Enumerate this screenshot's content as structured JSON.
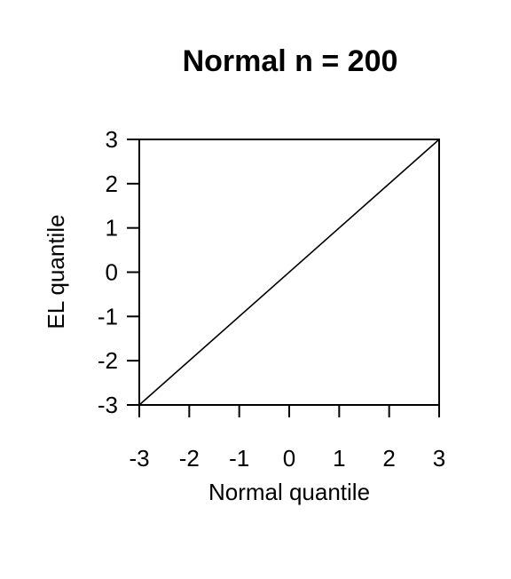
{
  "chart_data": {
    "type": "line",
    "title": "Normal n = 200",
    "xlabel": "Normal quantile",
    "ylabel": "EL quantile",
    "xlim": [
      -3,
      3
    ],
    "ylim": [
      -3,
      3
    ],
    "x_ticks": [
      -3,
      -2,
      -1,
      0,
      1,
      2,
      3
    ],
    "y_ticks": [
      -3,
      -2,
      -1,
      0,
      1,
      2,
      3
    ],
    "x_tick_labels": [
      "-3",
      "-2",
      "-1",
      "0",
      "1",
      "2",
      "3"
    ],
    "y_tick_labels": [
      "-3",
      "-2",
      "-1",
      "0",
      "1",
      "2",
      "3"
    ],
    "grid": false,
    "series": [
      {
        "x": [
          -3,
          3
        ],
        "y": [
          -3,
          3
        ]
      }
    ]
  }
}
